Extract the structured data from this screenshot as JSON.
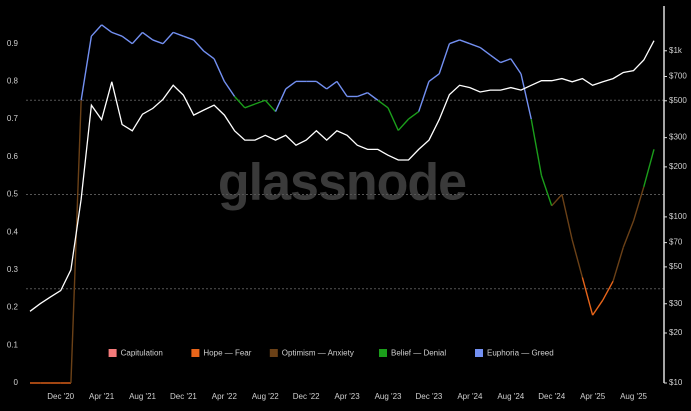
{
  "chart_data": {
    "type": "line",
    "watermark": "glassnode",
    "x": [
      "2020-09",
      "2020-10",
      "2020-11",
      "2020-12",
      "2021-01",
      "2021-02",
      "2021-03",
      "2021-04",
      "2021-05",
      "2021-06",
      "2021-07",
      "2021-08",
      "2021-09",
      "2021-10",
      "2021-11",
      "2021-12",
      "2022-01",
      "2022-02",
      "2022-03",
      "2022-04",
      "2022-05",
      "2022-06",
      "2022-07",
      "2022-08",
      "2022-09",
      "2022-10",
      "2022-11",
      "2022-12",
      "2023-01",
      "2023-02",
      "2023-03",
      "2023-04",
      "2023-05",
      "2023-06",
      "2023-07",
      "2023-08",
      "2023-09",
      "2023-10",
      "2023-11",
      "2023-12",
      "2024-01",
      "2024-02",
      "2024-03",
      "2024-04",
      "2024-05",
      "2024-06",
      "2024-07",
      "2024-08",
      "2024-09",
      "2024-10",
      "2024-11",
      "2024-12",
      "2025-01",
      "2025-02",
      "2025-03",
      "2025-04",
      "2025-05",
      "2025-06",
      "2025-07",
      "2025-08",
      "2025-09",
      "2025-10"
    ],
    "xticks": [
      {
        "value": "2020-12",
        "label": "Dec '20"
      },
      {
        "value": "2021-04",
        "label": "Apr '21"
      },
      {
        "value": "2021-08",
        "label": "Aug '21"
      },
      {
        "value": "2021-12",
        "label": "Dec '21"
      },
      {
        "value": "2022-04",
        "label": "Apr '22"
      },
      {
        "value": "2022-08",
        "label": "Aug '22"
      },
      {
        "value": "2022-12",
        "label": "Dec '22"
      },
      {
        "value": "2023-04",
        "label": "Apr '23"
      },
      {
        "value": "2023-08",
        "label": "Aug '23"
      },
      {
        "value": "2023-12",
        "label": "Dec '23"
      },
      {
        "value": "2024-04",
        "label": "Apr '24"
      },
      {
        "value": "2024-08",
        "label": "Aug '24"
      },
      {
        "value": "2024-12",
        "label": "Dec '24"
      },
      {
        "value": "2025-04",
        "label": "Apr '25"
      },
      {
        "value": "2025-08",
        "label": "Aug '25"
      }
    ],
    "ylim": [
      0,
      1
    ],
    "yticks": [
      0,
      0.1,
      0.2,
      0.3,
      0.4,
      0.5,
      0.6,
      0.7,
      0.8,
      0.9
    ],
    "y2lim": [
      10,
      1860
    ],
    "y2scale": "log",
    "y2ticks": [
      {
        "value": 10,
        "label": "$10"
      },
      {
        "value": 20,
        "label": "$20"
      },
      {
        "value": 30,
        "label": "$30"
      },
      {
        "value": 50,
        "label": "$50"
      },
      {
        "value": 70,
        "label": "$70"
      },
      {
        "value": 100,
        "label": "$100"
      },
      {
        "value": 200,
        "label": "$200"
      },
      {
        "value": 300,
        "label": "$300"
      },
      {
        "value": 500,
        "label": "$500"
      },
      {
        "value": 700,
        "label": "$700"
      },
      {
        "value": 1000,
        "label": "$1k"
      }
    ],
    "zones": [
      {
        "name": "Capitulation",
        "color": "#f57b7b",
        "to": 0
      },
      {
        "name": "Hope — Fear",
        "color": "#e8651a",
        "to": 0.25
      },
      {
        "name": "Optimism — Anxiety",
        "color": "#6b4117",
        "to": 0.5
      },
      {
        "name": "Belief — Denial",
        "color": "#1b9e1b",
        "to": 0.75
      },
      {
        "name": "Euphoria — Greed",
        "color": "#7390f2",
        "to": null
      }
    ],
    "series": [
      {
        "values": [
          0,
          0,
          0,
          0,
          0,
          0.75,
          0.92,
          0.95,
          0.93,
          0.92,
          0.9,
          0.93,
          0.91,
          0.9,
          0.93,
          0.92,
          0.91,
          0.88,
          0.86,
          0.8,
          0.76,
          0.73,
          0.74,
          0.75,
          0.72,
          0.78,
          0.8,
          0.8,
          0.8,
          0.78,
          0.8,
          0.76,
          0.76,
          0.77,
          0.75,
          0.73,
          0.67,
          0.7,
          0.72,
          0.8,
          0.82,
          0.9,
          0.91,
          0.9,
          0.89,
          0.87,
          0.85,
          0.86,
          0.82,
          0.7,
          0.55,
          0.47,
          0.5,
          0.38,
          0.28,
          0.18,
          0.22,
          0.27,
          0.36,
          0.43,
          0.52,
          0.62
        ]
      },
      {
        "color": "#ffffff",
        "axis": "y2",
        "values": [
          27,
          30,
          33,
          36,
          48,
          127,
          470,
          385,
          650,
          360,
          330,
          415,
          450,
          510,
          620,
          540,
          410,
          440,
          470,
          410,
          330,
          290,
          290,
          310,
          290,
          310,
          270,
          290,
          330,
          290,
          330,
          310,
          270,
          255,
          255,
          235,
          220,
          220,
          255,
          290,
          385,
          545,
          620,
          600,
          565,
          580,
          580,
          600,
          580,
          620,
          660,
          660,
          680,
          650,
          680,
          620,
          650,
          680,
          740,
          760,
          880,
          1150
        ]
      }
    ],
    "grid": "zones"
  }
}
